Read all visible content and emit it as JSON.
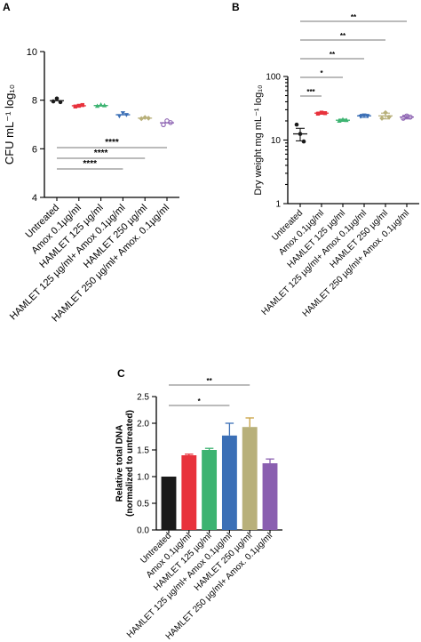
{
  "chart_data": [
    {
      "panel": "A",
      "type": "scatter",
      "ylabel": "CFU mL⁻¹ log₁₀",
      "ylim": [
        4,
        10
      ],
      "yticks": [
        "4",
        "6",
        "8",
        "10"
      ],
      "categories": [
        "Untreated",
        "Amox 0.1µg/ml",
        "HAMLET 125 µg/ml",
        "HAMLET 125 µg/ml+ Amox 0.1µg/ml",
        "HAMLET 250 µg/ml",
        "HAMLET 250 µg/ml+ Amox. 0.1µg/ml"
      ],
      "colors": [
        "#1a1a1a",
        "#e8323c",
        "#3cb371",
        "#3b6fb6",
        "#b8b07a",
        "#8a5fb0"
      ],
      "means": [
        7.98,
        7.77,
        7.78,
        7.4,
        7.26,
        7.07
      ],
      "points": [
        [
          7.95,
          8.07,
          7.92
        ],
        [
          7.74,
          7.77,
          7.8
        ],
        [
          7.76,
          7.81,
          7.78
        ],
        [
          7.35,
          7.47,
          7.4
        ],
        [
          7.24,
          7.29,
          7.26
        ],
        [
          6.99,
          7.15,
          7.08
        ]
      ],
      "significance": [
        {
          "from": 0,
          "to": 3,
          "label": "****"
        },
        {
          "from": 0,
          "to": 4,
          "label": "****"
        },
        {
          "from": 0,
          "to": 5,
          "label": "****"
        }
      ]
    },
    {
      "panel": "B",
      "type": "scatter",
      "ylabel": "Dry weight mg mL⁻¹ log₁₀",
      "yscale": "log",
      "ylim": [
        1,
        100
      ],
      "yticks": [
        "1",
        "10",
        "100"
      ],
      "categories": [
        "Untreated",
        "Amox 0.1µg/ml",
        "HAMLET 125 µg/ml",
        "HAMLET 125 µg/ml+ Amox 0.1µg/ml",
        "HAMLET 250 µg/ml",
        "HAMLET 250 µg/ml+ Amox. 0.1µg/ml"
      ],
      "colors": [
        "#1a1a1a",
        "#e8323c",
        "#3cb371",
        "#3b6fb6",
        "#b8b07a",
        "#8a5fb0"
      ],
      "means": [
        12.5,
        26.5,
        20.5,
        24,
        24,
        23
      ],
      "errors": [
        2.8,
        1,
        0.8,
        1.3,
        2.5,
        1.5
      ],
      "points": [
        [
          17.5,
          12.5,
          9.5
        ],
        [
          26,
          27,
          26.5
        ],
        [
          20,
          21,
          20.5
        ],
        [
          23.5,
          24.5,
          24
        ],
        [
          22,
          27,
          23
        ],
        [
          22,
          24,
          23
        ]
      ],
      "significance": [
        {
          "from": 0,
          "to": 1,
          "label": "***"
        },
        {
          "from": 0,
          "to": 2,
          "label": "*"
        },
        {
          "from": 0,
          "to": 3,
          "label": "**"
        },
        {
          "from": 0,
          "to": 4,
          "label": "**"
        },
        {
          "from": 0,
          "to": 5,
          "label": "**"
        }
      ]
    },
    {
      "panel": "C",
      "type": "bar",
      "ylabel": "Relative total DNA\n(normalized to untreated)",
      "ylim": [
        0,
        2.5
      ],
      "yticks": [
        "0.0",
        "0.5",
        "1.0",
        "1.5",
        "2.0",
        "2.5"
      ],
      "categories": [
        "Untreated",
        "Amox 0.1µg/ml",
        "HAMLET 125 µg/ml",
        "HAMLET 125 µg/ml+ Amox 0.1µg/ml",
        "HAMLET 250 µg/ml",
        "HAMLET 250 µg/ml+ Amox. 0.1µg/ml"
      ],
      "colors": [
        "#1a1a1a",
        "#e8323c",
        "#3cb371",
        "#3b6fb6",
        "#b8b07a",
        "#8a5fb0"
      ],
      "errcolors": [
        "#1a1a1a",
        "#e8323c",
        "#3cb371",
        "#3b6fb6",
        "#c8a040",
        "#8a5fb0"
      ],
      "values": [
        1.0,
        1.4,
        1.5,
        1.77,
        1.93,
        1.25
      ],
      "errors": [
        0,
        0.02,
        0.03,
        0.23,
        0.17,
        0.08
      ],
      "significance": [
        {
          "from": 0,
          "to": 3,
          "label": "*"
        },
        {
          "from": 0,
          "to": 4,
          "label": "**"
        }
      ]
    }
  ]
}
